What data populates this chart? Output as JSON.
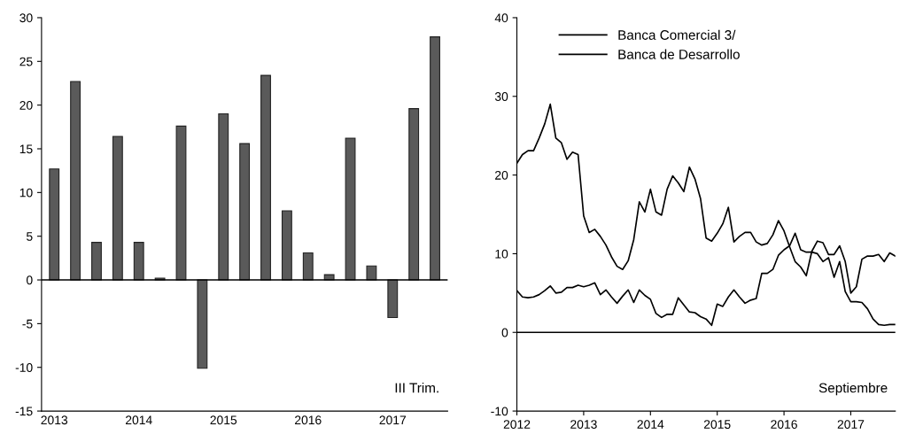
{
  "chart_data": [
    {
      "type": "bar",
      "categories": [
        "2013",
        null,
        null,
        null,
        "2014",
        null,
        null,
        null,
        "2015",
        null,
        null,
        null,
        "2016",
        null,
        null,
        null,
        "2017",
        null,
        null
      ],
      "series": [
        {
          "color": "#5a5a5a",
          "values": [
            12.7,
            22.7,
            4.3,
            16.4,
            4.3,
            0.2,
            17.6,
            -10.1,
            19.0,
            15.6,
            23.4,
            7.9,
            3.1,
            0.6,
            16.2,
            1.6,
            -4.3,
            19.6,
            27.8
          ]
        }
      ],
      "ylim": [
        -15,
        30
      ],
      "yticks": [
        -15,
        -10,
        -5,
        0,
        5,
        10,
        15,
        20,
        25,
        30
      ],
      "ref_lines": [
        {
          "axis": "y",
          "value": 0,
          "color": "#000000"
        }
      ],
      "annotations": [
        "III Trim."
      ],
      "grid": false,
      "legend": false
    },
    {
      "type": "line",
      "x": [
        "2012-01",
        "2012-02",
        "2012-03",
        "2012-04",
        "2012-05",
        "2012-06",
        "2012-07",
        "2012-08",
        "2012-09",
        "2012-10",
        "2012-11",
        "2012-12",
        "2013-01",
        "2013-02",
        "2013-03",
        "2013-04",
        "2013-05",
        "2013-06",
        "2013-07",
        "2013-08",
        "2013-09",
        "2013-10",
        "2013-11",
        "2013-12",
        "2014-01",
        "2014-02",
        "2014-03",
        "2014-04",
        "2014-05",
        "2014-06",
        "2014-07",
        "2014-08",
        "2014-09",
        "2014-10",
        "2014-11",
        "2014-12",
        "2015-01",
        "2015-02",
        "2015-03",
        "2015-04",
        "2015-05",
        "2015-06",
        "2015-07",
        "2015-08",
        "2015-09",
        "2015-10",
        "2015-11",
        "2015-12",
        "2016-01",
        "2016-02",
        "2016-03",
        "2016-04",
        "2016-05",
        "2016-06",
        "2016-07",
        "2016-08",
        "2016-09",
        "2016-10",
        "2016-11",
        "2016-12",
        "2017-01",
        "2017-02",
        "2017-03",
        "2017-04",
        "2017-05",
        "2017-06",
        "2017-07",
        "2017-08",
        "2017-09"
      ],
      "series": [
        {
          "name": "Banca Comercial 3/",
          "color": "#000000",
          "values": [
            21.5,
            22.6,
            23.1,
            23.1,
            24.7,
            26.5,
            29.0,
            24.7,
            24.1,
            22.0,
            22.9,
            22.6,
            14.8,
            12.7,
            13.1,
            12.2,
            11.1,
            9.6,
            8.4,
            8.0,
            9.1,
            11.8,
            16.6,
            15.3,
            18.2,
            15.3,
            14.9,
            18.2,
            19.9,
            19.0,
            17.9,
            21.0,
            19.5,
            17.0,
            12.0,
            11.6,
            12.6,
            13.8,
            15.9,
            11.5,
            12.2,
            12.7,
            12.7,
            11.5,
            11.1,
            11.3,
            12.4,
            14.2,
            12.9,
            10.9,
            9.0,
            8.3,
            7.2,
            10.3,
            11.6,
            11.4,
            9.9,
            9.9,
            11.0,
            9.0,
            5.0,
            5.8,
            9.3,
            9.7,
            9.7,
            9.9,
            9.0,
            10.1,
            9.7
          ]
        },
        {
          "name": "Banca de Desarrollo",
          "color": "#000000",
          "values": [
            5.3,
            4.5,
            4.4,
            4.5,
            4.8,
            5.3,
            5.9,
            5.0,
            5.1,
            5.7,
            5.7,
            6.0,
            5.8,
            6.0,
            6.3,
            4.8,
            5.4,
            4.5,
            3.7,
            4.6,
            5.4,
            3.8,
            5.4,
            4.7,
            4.2,
            2.4,
            1.9,
            2.3,
            2.3,
            4.4,
            3.5,
            2.6,
            2.5,
            2.0,
            1.7,
            0.9,
            3.6,
            3.3,
            4.5,
            5.4,
            4.5,
            3.7,
            4.1,
            4.3,
            7.5,
            7.5,
            8.0,
            9.8,
            10.5,
            11.0,
            12.6,
            10.5,
            10.2,
            10.2,
            10.0,
            9.0,
            9.5,
            7.0,
            9.0,
            5.2,
            3.9,
            3.9,
            3.8,
            3.0,
            1.7,
            1.0,
            0.9,
            1.0,
            1.0
          ]
        }
      ],
      "xlim": [
        "2012-01",
        "2017-09"
      ],
      "xticks": [
        "2012",
        "2013",
        "2014",
        "2015",
        "2016",
        "2017"
      ],
      "ylim": [
        -10,
        40
      ],
      "yticks": [
        -10,
        0,
        10,
        20,
        30,
        40
      ],
      "ref_lines": [
        {
          "axis": "y",
          "value": 0,
          "color": "#000000"
        }
      ],
      "annotations": [
        "Septiembre"
      ],
      "grid": false,
      "legend": "top left",
      "marker": "none",
      "line_style": "solid"
    }
  ]
}
